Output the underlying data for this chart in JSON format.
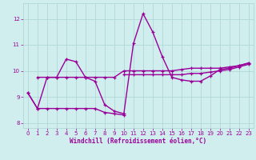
{
  "x": [
    0,
    1,
    2,
    3,
    4,
    5,
    6,
    7,
    8,
    9,
    10,
    11,
    12,
    13,
    14,
    15,
    16,
    17,
    18,
    19,
    20,
    21,
    22,
    23
  ],
  "series_main": [
    9.15,
    8.55,
    9.75,
    9.75,
    10.45,
    10.35,
    9.75,
    9.6,
    8.7,
    8.45,
    8.35,
    11.05,
    12.2,
    11.5,
    10.55,
    9.75,
    9.65,
    9.6,
    9.6,
    9.8,
    10.05,
    10.1,
    10.2,
    10.3
  ],
  "series_flat1": [
    null,
    9.75,
    9.75,
    9.75,
    9.75,
    9.75,
    9.75,
    9.75,
    9.75,
    9.75,
    10.0,
    10.0,
    10.0,
    10.0,
    10.0,
    10.0,
    10.05,
    10.1,
    10.1,
    10.1,
    10.1,
    10.15,
    10.2,
    10.3
  ],
  "series_flat2": [
    null,
    null,
    null,
    null,
    null,
    null,
    null,
    null,
    null,
    null,
    9.85,
    9.85,
    9.85,
    9.85,
    9.85,
    9.85,
    9.85,
    9.9,
    9.9,
    9.95,
    10.0,
    10.05,
    10.15,
    10.25
  ],
  "series_bottom": [
    9.15,
    8.55,
    8.55,
    8.55,
    8.55,
    8.55,
    8.55,
    8.55,
    8.4,
    8.35,
    8.3,
    null,
    null,
    null,
    null,
    null,
    null,
    null,
    null,
    null,
    null,
    null,
    null,
    null
  ],
  "background_color": "#d1eeee",
  "grid_color": "#aad4d4",
  "line_color": "#990099",
  "xlabel": "Windchill (Refroidissement éolien,°C)",
  "ylim": [
    7.8,
    12.6
  ],
  "xlim": [
    -0.5,
    23.5
  ],
  "yticks": [
    8,
    9,
    10,
    11,
    12
  ],
  "xticks": [
    0,
    1,
    2,
    3,
    4,
    5,
    6,
    7,
    8,
    9,
    10,
    11,
    12,
    13,
    14,
    15,
    16,
    17,
    18,
    19,
    20,
    21,
    22,
    23
  ]
}
